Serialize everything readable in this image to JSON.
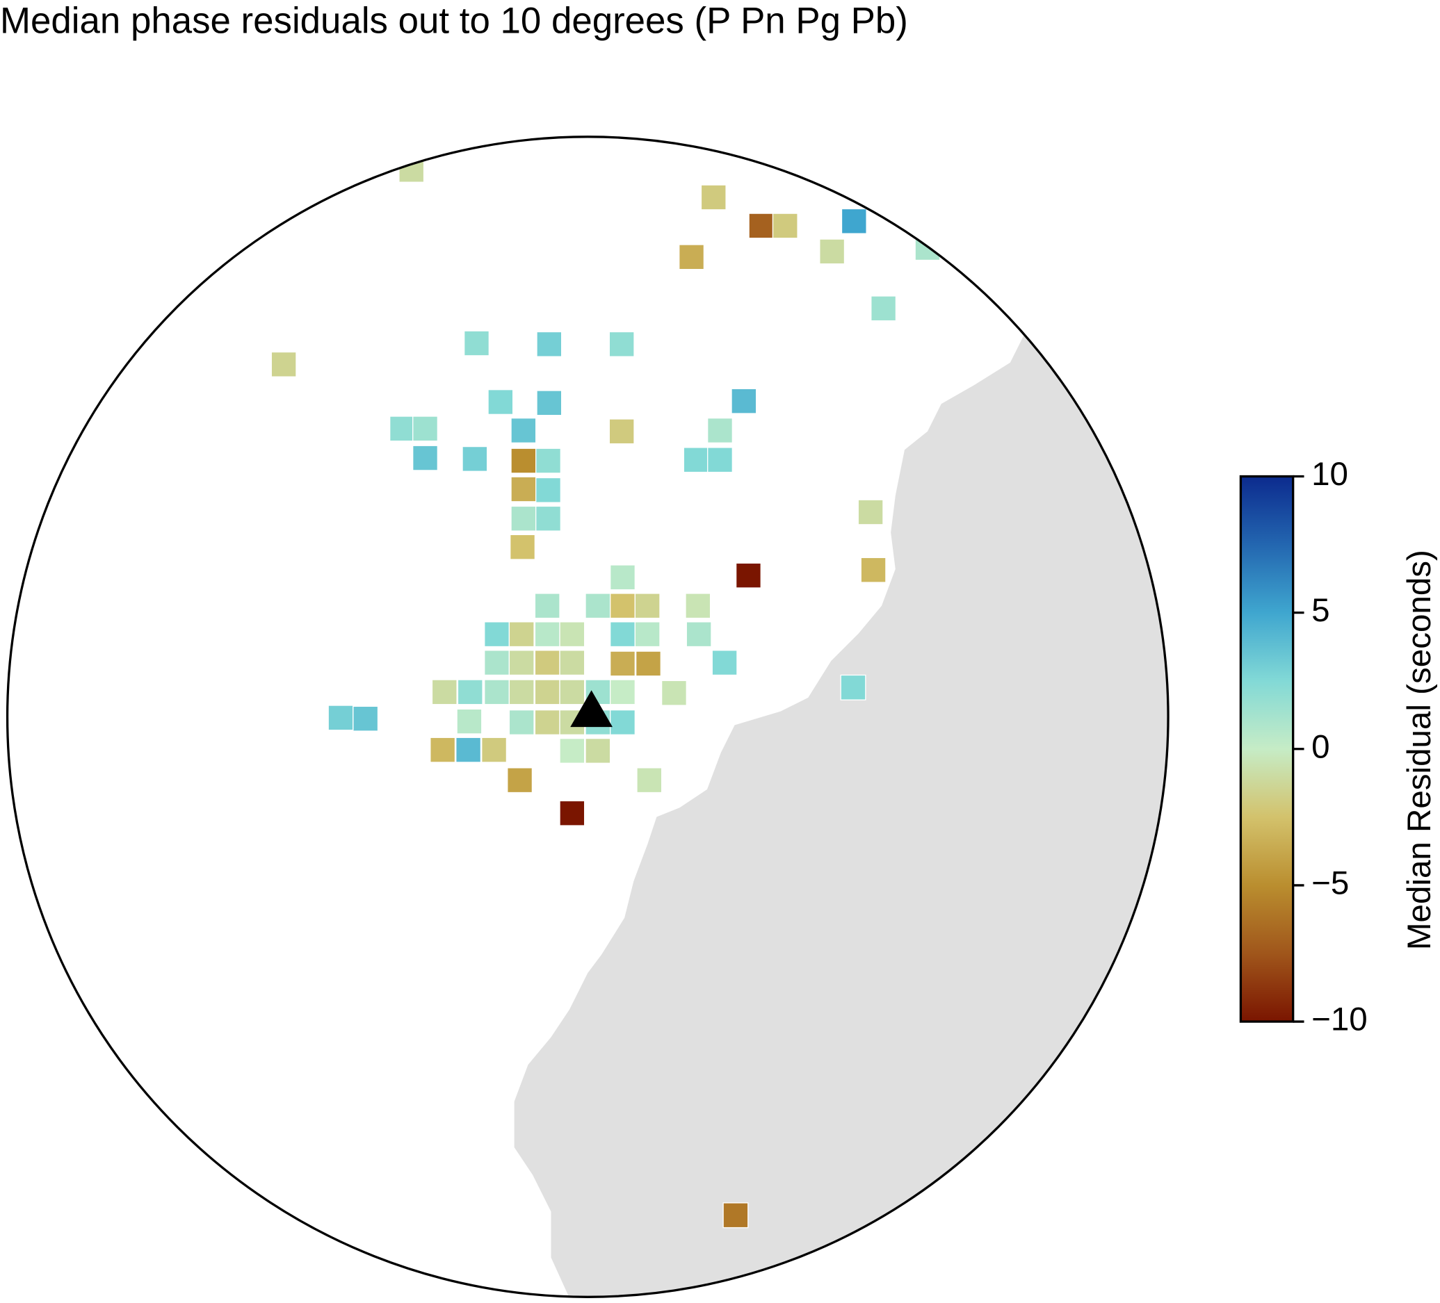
{
  "chart_data": {
    "type": "map",
    "title": "Median phase residuals out to 10 degrees (P Pn Pg Pb)",
    "colorbar_label": "Median Residual (seconds)",
    "clim": [
      -10,
      10
    ],
    "cticks": [
      {
        "value": -10,
        "label": "−10"
      },
      {
        "value": -5,
        "label": "−5"
      },
      0,
      5,
      10
    ],
    "colormap": [
      "#7a1500",
      "#a0561b",
      "#ba8e2f",
      "#d3c26c",
      "#c6ecc6",
      "#82d9d6",
      "#3fa6cf",
      "#2366b0",
      "#0c2b8e"
    ],
    "land_color": "#e0e0e0",
    "values": [
      -1,
      -2,
      -7,
      -2,
      5,
      -3.5,
      -1,
      1,
      1.5,
      -1.5,
      2,
      3,
      2,
      2.5,
      3.5,
      4,
      2,
      1.5,
      3.5,
      -2,
      1,
      3.5,
      3,
      -5,
      2,
      2.5,
      2.5,
      -3.5,
      2.5,
      1,
      2,
      -1,
      -2.5,
      0.5,
      -10,
      -3,
      1,
      1,
      -2.5,
      -1.5,
      -0.5,
      2.5,
      -1.5,
      0.5,
      -0.5,
      2.5,
      0.5,
      1,
      1,
      -1,
      -2,
      -1,
      -3.5,
      -4,
      2.5,
      -1,
      2,
      1,
      -1,
      -1.5,
      -1,
      1.5,
      0,
      -0.5,
      2.5,
      3,
      3.5,
      0.5,
      1,
      -1.5,
      -1,
      2,
      2.5,
      -3,
      4,
      -2,
      0,
      -1,
      -4,
      -0.5,
      -10,
      -6
    ]
  }
}
